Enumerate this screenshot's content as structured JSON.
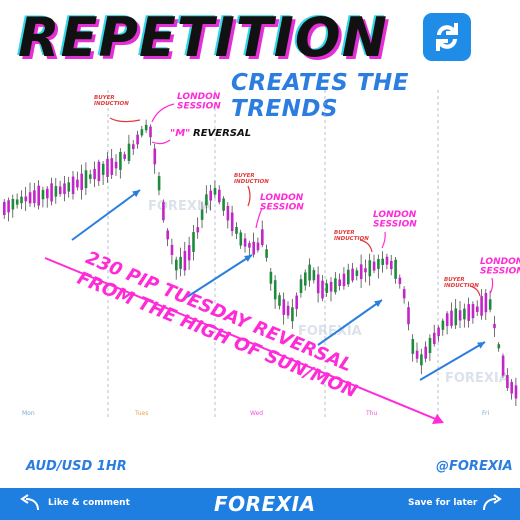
{
  "header": {
    "title": "REPETITION",
    "subtitle": "CREATES THE TRENDS",
    "icon": "repeat-icon"
  },
  "footer": {
    "pair_label": "AUD/USD 1HR",
    "handle": "@FOREXIA"
  },
  "bottom_bar": {
    "like_text": "Like & comment",
    "brand_text": "FOREXIA",
    "save_text": "Save for later"
  },
  "colors": {
    "bull": "#1e8a3c",
    "bear": "#c226c8",
    "accent_magenta": "#ff2bd6",
    "accent_blue": "#2b7ee0",
    "annotation_red": "#e23a3a",
    "bottom_bar": "#1f7fe0"
  },
  "chart_data": {
    "type": "candlestick",
    "day_labels": [
      "Mon",
      "Tues",
      "Wed",
      "Thu",
      "Fri"
    ],
    "annotations": {
      "buyer_induction": "BUYER\nINDUCTION",
      "london_session": "LONDON\nSESSION",
      "m_reversal_quote": "\"M\"",
      "m_reversal_word": "REVERSAL",
      "main_text_line1": "230 PIP TUESDAY REVERSAL",
      "main_text_line2": "FROM THE HIGH OF SUN/MON"
    },
    "watermark": "FOREXIA",
    "candles": []
  }
}
